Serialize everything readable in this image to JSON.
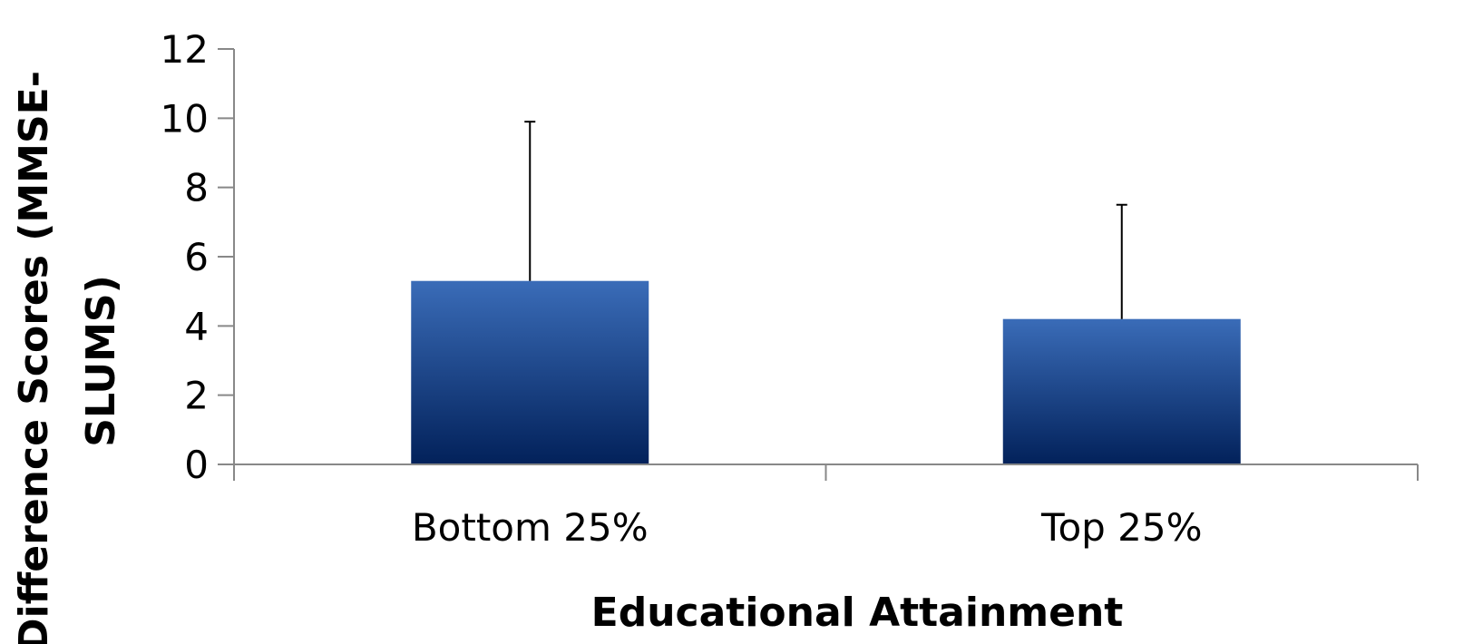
{
  "chart_data": {
    "type": "bar",
    "categories": [
      "Bottom 25%",
      "Top 25%"
    ],
    "values": [
      5.3,
      4.2
    ],
    "error_upper": [
      4.6,
      3.3
    ],
    "xlabel": "Educational Attainment",
    "ylabel_lines": [
      "Difference Scores (MMSE-",
      "SLUMS)"
    ],
    "ylim": [
      0,
      12
    ],
    "yticks": [
      0,
      2,
      4,
      6,
      8,
      10,
      12
    ],
    "grid": false,
    "legend": "none",
    "colors": {
      "bar_top": "#3a6cb8",
      "bar_bottom": "#02215a",
      "axis": "#888888",
      "error_bar": "#000000"
    }
  }
}
